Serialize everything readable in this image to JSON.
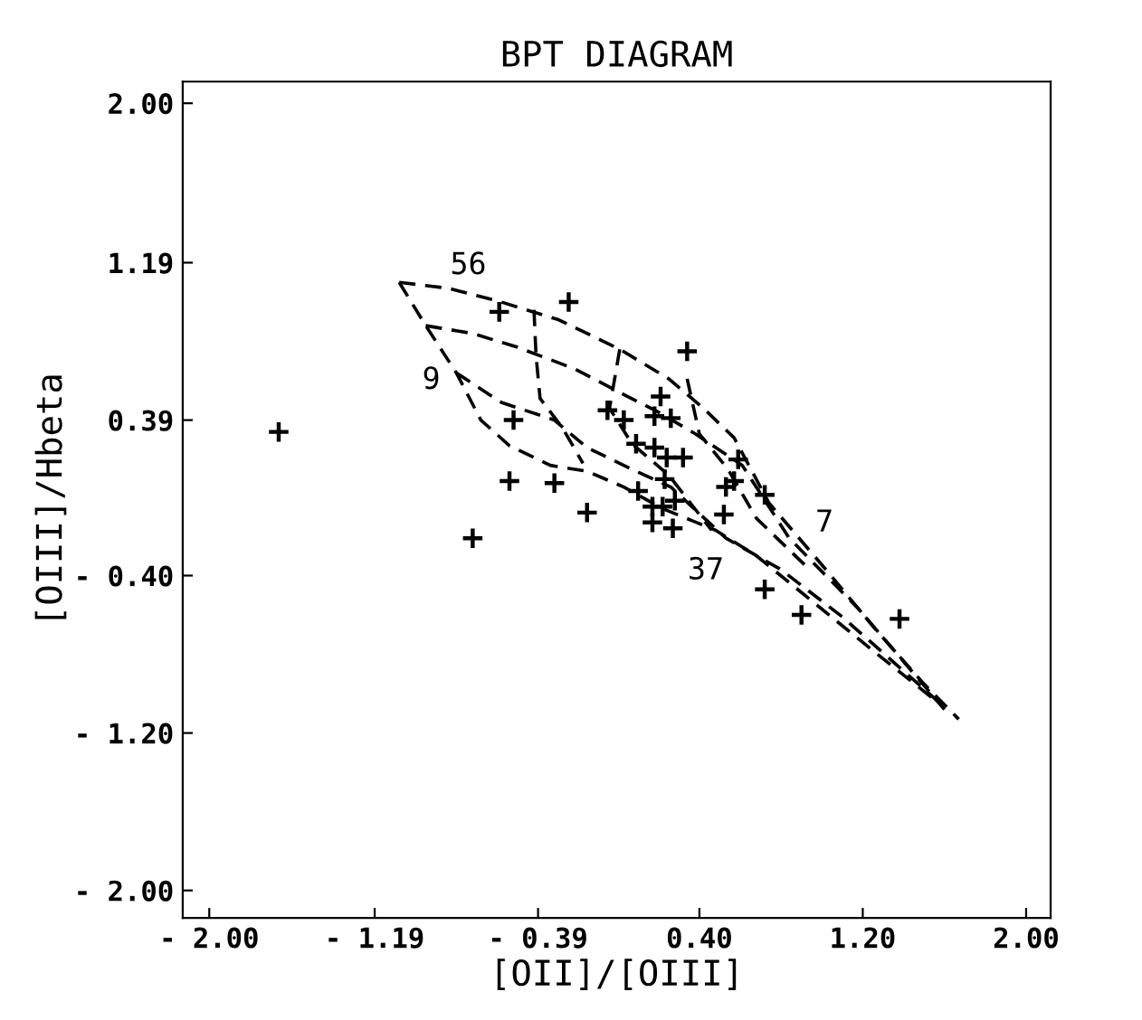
{
  "chart_data": {
    "type": "scatter",
    "title": "BPT DIAGRAM",
    "xlabel": "[OII]/[OIII]",
    "ylabel": "[OIII]/Hbeta",
    "xlim": [
      -2.13,
      2.12
    ],
    "ylim": [
      -2.14,
      2.11
    ],
    "xticks": [
      {
        "value": -2.0,
        "label": "- 2.00"
      },
      {
        "value": -1.19,
        "label": "- 1.19"
      },
      {
        "value": -0.39,
        "label": "- 0.39"
      },
      {
        "value": 0.4,
        "label": "0.40"
      },
      {
        "value": 1.2,
        "label": "1.20"
      },
      {
        "value": 2.0,
        "label": "2.00"
      }
    ],
    "yticks": [
      {
        "value": -2.0,
        "label": "- 2.00"
      },
      {
        "value": -1.2,
        "label": "- 1.20"
      },
      {
        "value": -0.4,
        "label": "- 0.40"
      },
      {
        "value": 0.39,
        "label": "0.39"
      },
      {
        "value": 1.19,
        "label": "1.19"
      },
      {
        "value": 2.0,
        "label": "2.00"
      }
    ],
    "grid": false,
    "legend": false,
    "series": [
      {
        "marker": "cross",
        "color": "#000000",
        "x": [
          -1.66,
          -0.71,
          -0.58,
          -0.24,
          0.34,
          -0.51,
          -0.53,
          -0.31,
          -0.15,
          0.1,
          -0.05,
          0.03,
          0.21,
          0.18,
          0.26,
          0.09,
          0.18,
          0.24,
          0.32,
          0.23,
          0.17,
          0.22,
          0.28,
          0.17,
          0.27,
          0.59,
          0.53,
          0.57,
          0.52,
          0.72,
          0.72,
          0.9,
          1.38
        ],
        "values": [
          0.33,
          -0.21,
          0.94,
          0.99,
          0.74,
          0.39,
          0.08,
          0.07,
          -0.08,
          0.03,
          0.44,
          0.39,
          0.51,
          0.41,
          0.4,
          0.27,
          0.25,
          0.2,
          0.2,
          0.09,
          -0.05,
          -0.05,
          -0.02,
          -0.13,
          -0.16,
          0.19,
          0.05,
          0.08,
          -0.09,
          0.01,
          -0.47,
          -0.6,
          -0.62
        ]
      },
      {
        "type": "line",
        "line_style": "dashed",
        "marker": "none",
        "color": "#000000",
        "x": [
          -1.07,
          -0.83,
          -0.57,
          -0.29,
          0.01,
          0.25,
          0.42,
          0.57,
          0.74,
          1.02,
          1.26,
          1.49,
          1.67
        ],
        "values": [
          1.09,
          1.06,
          0.99,
          0.9,
          0.75,
          0.6,
          0.45,
          0.3,
          -0.03,
          -0.37,
          -0.67,
          -0.94,
          -1.13
        ]
      },
      {
        "type": "line",
        "line_style": "dashed",
        "marker": "none",
        "color": "#000000",
        "x": [
          -1.07,
          -0.94,
          -0.79,
          -0.67,
          -0.53,
          -0.33,
          -0.15,
          0.03,
          0.22,
          0.48,
          0.68,
          0.94,
          1.26,
          1.55
        ],
        "values": [
          1.09,
          0.87,
          0.63,
          0.39,
          0.26,
          0.16,
          0.13,
          0.05,
          -0.06,
          -0.17,
          -0.3,
          -0.52,
          -0.79,
          -1.03
        ]
      },
      {
        "type": "line",
        "line_style": "dashed",
        "marker": "none",
        "color": "#000000",
        "x": [
          -0.94,
          -0.71,
          -0.49,
          -0.21,
          0.03,
          0.2,
          0.38,
          0.61,
          0.84,
          1.18,
          1.6
        ],
        "values": [
          0.87,
          0.83,
          0.76,
          0.65,
          0.52,
          0.43,
          0.32,
          0.16,
          -0.21,
          -0.57,
          -1.08
        ]
      },
      {
        "type": "line",
        "line_style": "dashed",
        "marker": "none",
        "color": "#000000",
        "x": [
          -0.79,
          -0.57,
          -0.31,
          -0.15,
          0.07,
          0.26,
          0.53,
          0.8,
          1.1,
          1.58
        ],
        "values": [
          0.63,
          0.48,
          0.39,
          0.25,
          0.14,
          0.05,
          -0.21,
          -0.37,
          -0.61,
          -1.05
        ]
      },
      {
        "type": "line",
        "line_style": "dashed",
        "marker": "none",
        "color": "#000000",
        "x": [
          -0.41,
          -0.4,
          -0.38,
          -0.27,
          -0.17
        ],
        "values": [
          0.95,
          0.72,
          0.5,
          0.35,
          0.17
        ]
      },
      {
        "type": "line",
        "line_style": "dashed",
        "marker": "none",
        "color": "#000000",
        "x": [
          0.01,
          -0.04,
          0.07,
          0.25,
          0.46
        ],
        "values": [
          0.75,
          0.45,
          0.27,
          0.11,
          -0.17
        ]
      },
      {
        "type": "line",
        "line_style": "dashed",
        "marker": "none",
        "color": "#000000",
        "x": [
          0.34,
          0.4,
          0.54,
          0.68,
          0.92
        ],
        "values": [
          0.6,
          0.32,
          0.14,
          -0.11,
          -0.35
        ]
      }
    ],
    "annotations": [
      {
        "text": "56",
        "x": -0.83,
        "y": 1.06
      },
      {
        "text": "9",
        "x": -0.79,
        "y": 0.63
      },
      {
        "text": "37",
        "x": 0.53,
        "y": -0.21
      },
      {
        "text": "7",
        "x": 0.84,
        "y": -0.21
      }
    ]
  }
}
